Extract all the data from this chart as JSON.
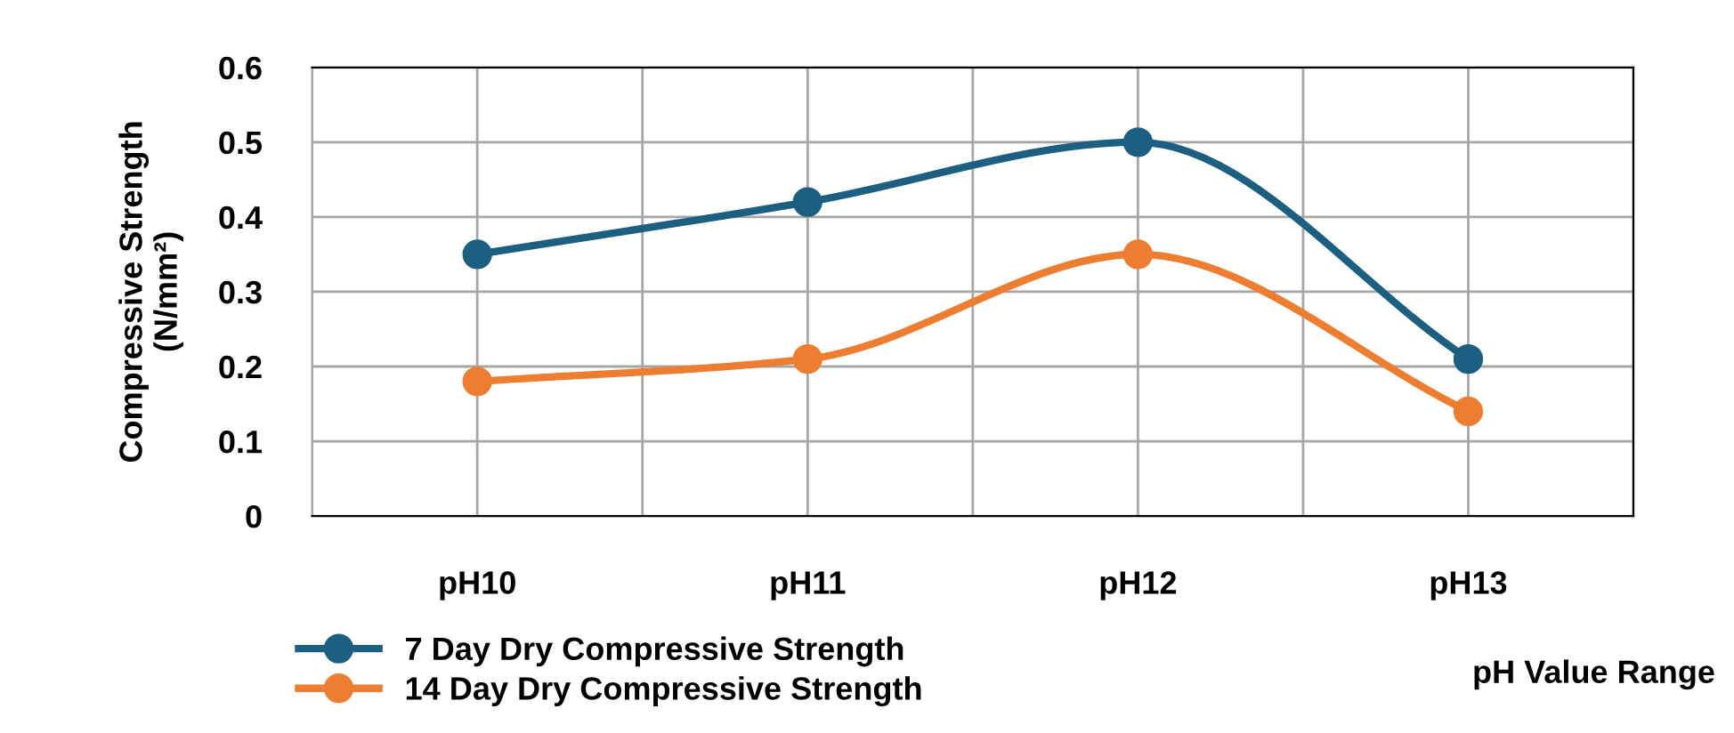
{
  "chart_data": {
    "type": "line",
    "xlabel": "pH Value Range",
    "ylabel": "Compressive Strength\n(N/mm²)",
    "categories": [
      "pH10",
      "pH11",
      "pH12",
      "pH13"
    ],
    "series": [
      {
        "name": "7 Day Dry Compressive Strength",
        "color": "#1c5f80",
        "values": [
          0.35,
          0.42,
          0.5,
          0.21
        ]
      },
      {
        "name": "14 Day Dry Compressive Strength",
        "color": "#ed7d31",
        "values": [
          0.18,
          0.21,
          0.35,
          0.14
        ]
      }
    ],
    "ylim": [
      0,
      0.6
    ],
    "yticks": [
      {
        "value": 0,
        "label": "0"
      },
      0.1,
      0.2,
      0.3,
      0.4,
      0.5,
      0.6
    ],
    "grid": true,
    "legend": "bottom left",
    "marker": "circle",
    "line_style": "solid"
  }
}
